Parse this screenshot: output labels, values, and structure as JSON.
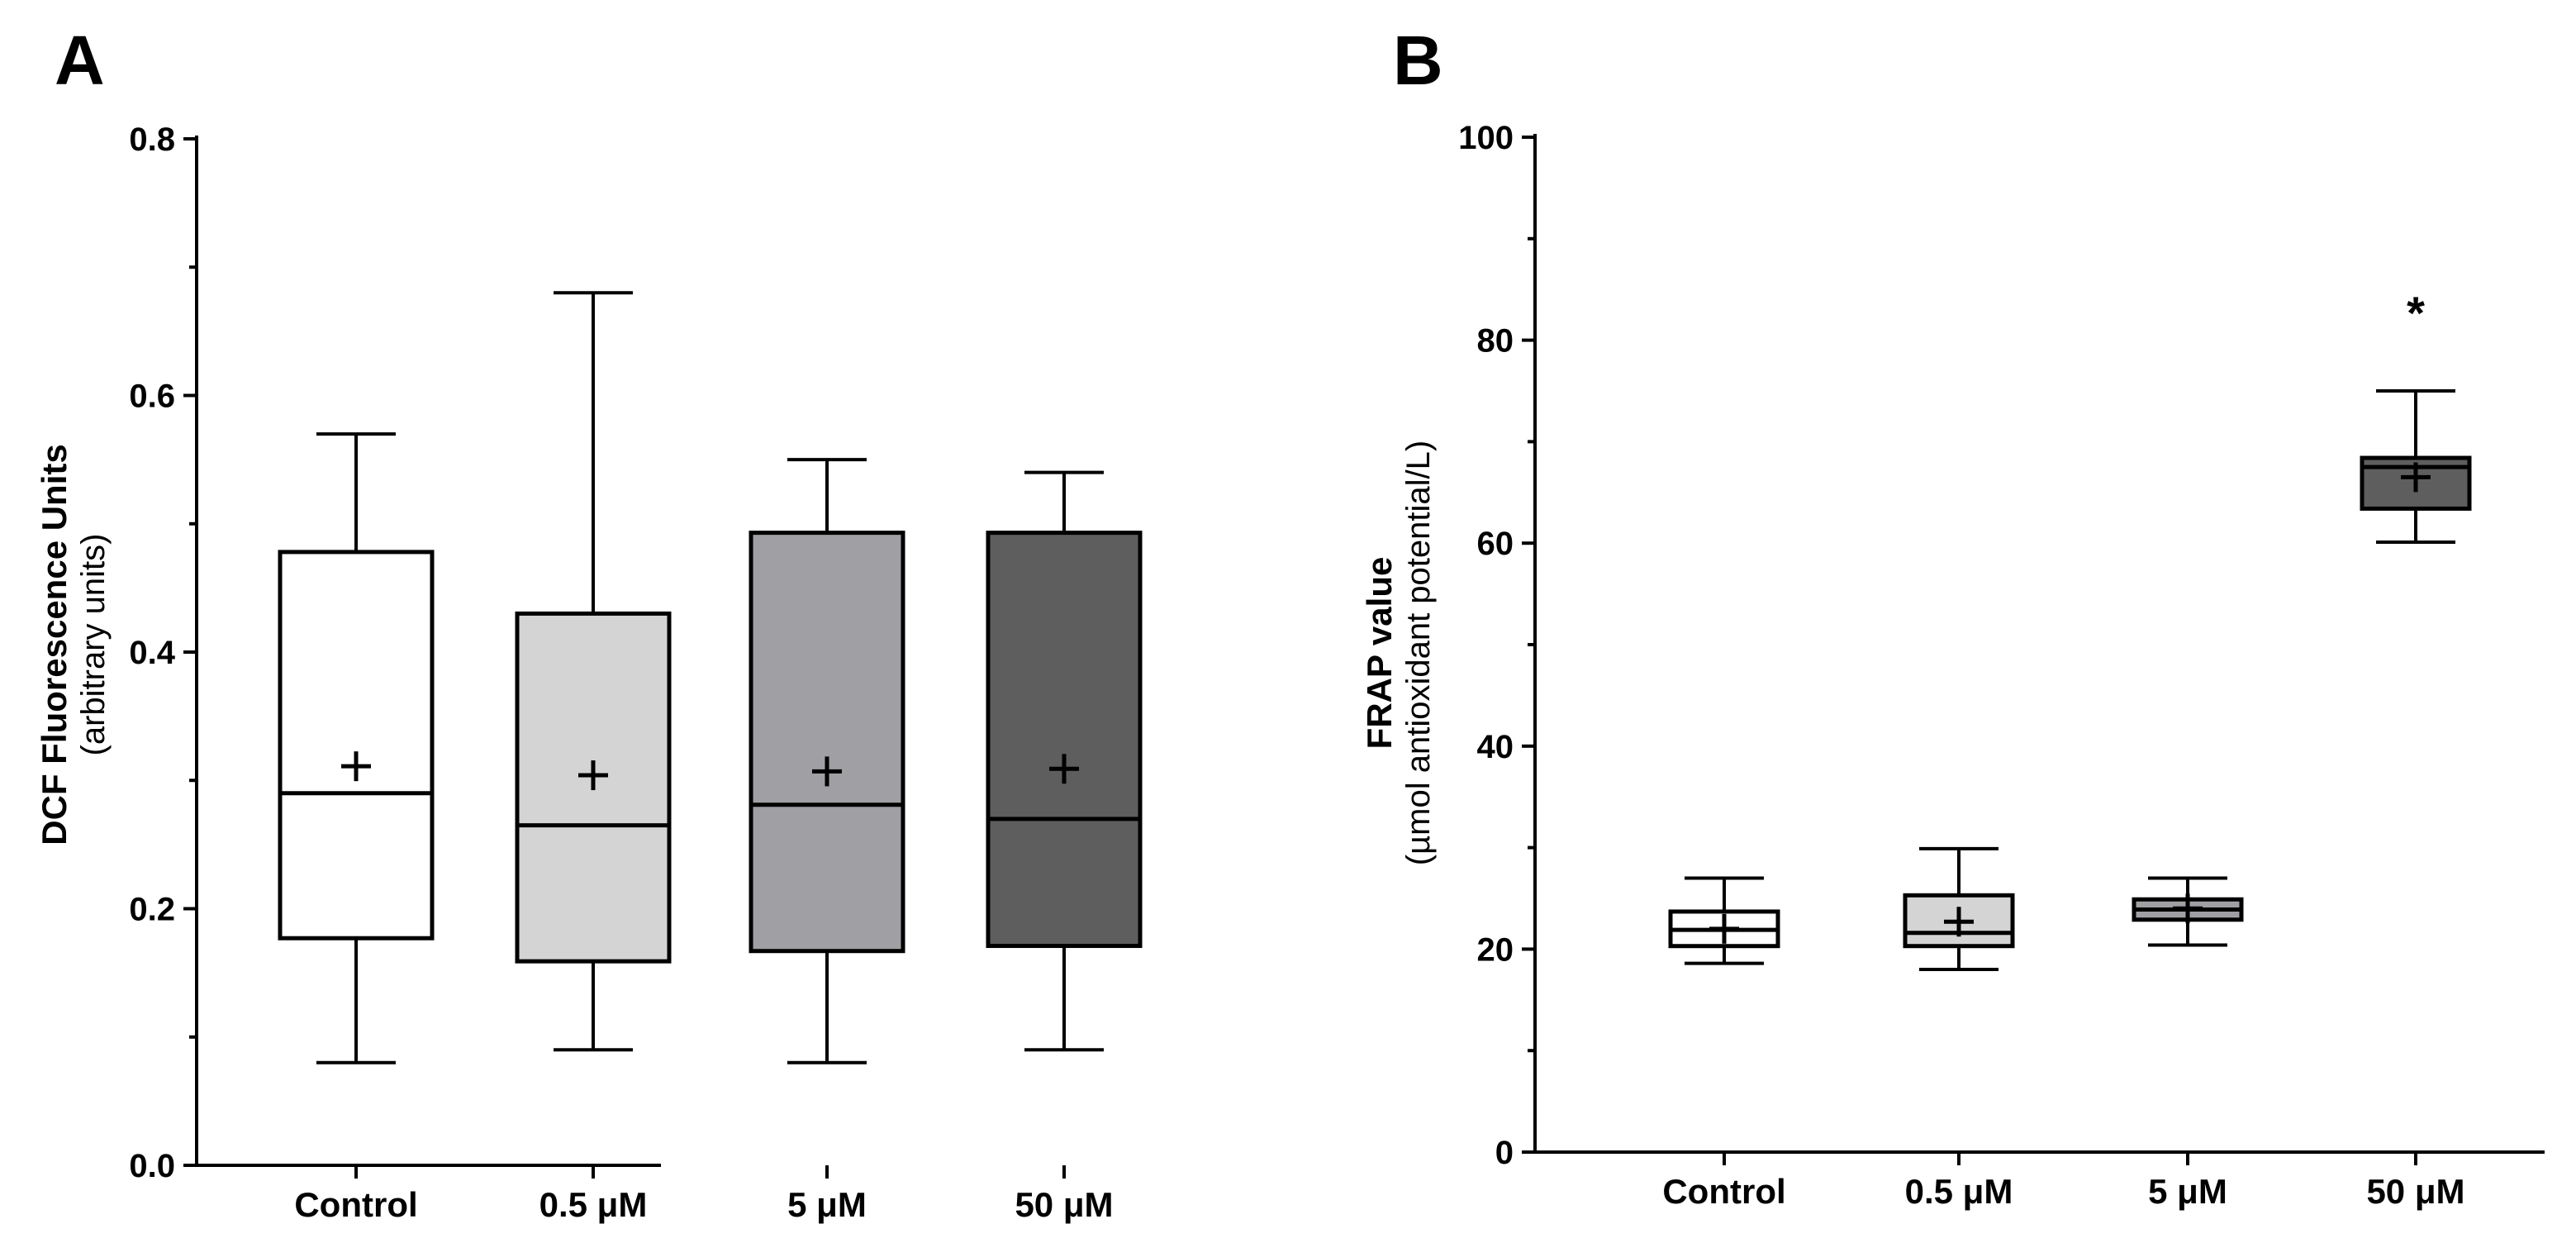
{
  "chart_data": [
    {
      "panel": "A",
      "type": "box",
      "ylabel": "DCF Fluorescence Units",
      "ylabel_sub": "(arbitrary units)",
      "xlabel": "",
      "ylim": [
        0,
        0.8
      ],
      "yticks": [
        "0.0",
        "0.2",
        "0.4",
        "0.6",
        "0.8"
      ],
      "ytick_values": [
        0,
        0.2,
        0.4,
        0.6,
        0.8
      ],
      "categories": [
        "Control",
        "0.5 μM",
        "5 μM",
        "50 μM"
      ],
      "boxes": [
        {
          "category": "Control",
          "min": 0.08,
          "q1": 0.177,
          "median": 0.29,
          "q3": 0.478,
          "max": 0.57,
          "mean": 0.311,
          "fill": "#ffffff"
        },
        {
          "category": "0.5 μM",
          "min": 0.09,
          "q1": 0.159,
          "median": 0.265,
          "q3": 0.43,
          "max": 0.68,
          "mean": 0.304,
          "fill": "#d4d4d4"
        },
        {
          "category": "5 μM",
          "min": 0.08,
          "q1": 0.167,
          "median": 0.281,
          "q3": 0.493,
          "max": 0.55,
          "mean": 0.307,
          "fill": "#a0a0a4"
        },
        {
          "category": "50 μM",
          "min": 0.09,
          "q1": 0.171,
          "median": 0.27,
          "q3": 0.493,
          "max": 0.54,
          "mean": 0.309,
          "fill": "#5e5e5e"
        }
      ],
      "annotations": []
    },
    {
      "panel": "B",
      "type": "box",
      "ylabel": "FRAP value",
      "ylabel_sub": "(µmol antioxidant potential/L)",
      "xlabel": "",
      "ylim": [
        0,
        100
      ],
      "yticks": [
        "0",
        "20",
        "40",
        "60",
        "80",
        "100"
      ],
      "ytick_values": [
        0,
        20,
        40,
        60,
        80,
        100
      ],
      "categories": [
        "Control",
        "0.5 μM",
        "5 μM",
        "50 μM"
      ],
      "boxes": [
        {
          "category": "Control",
          "min": 18.6,
          "q1": 20.3,
          "median": 21.9,
          "q3": 23.7,
          "max": 27.0,
          "mean": 22.0,
          "fill": "#ffffff"
        },
        {
          "category": "0.5 μM",
          "min": 18.0,
          "q1": 20.3,
          "median": 21.6,
          "q3": 25.3,
          "max": 29.9,
          "mean": 22.7,
          "fill": "#d4d4d4"
        },
        {
          "category": "5 μM",
          "min": 20.4,
          "q1": 22.9,
          "median": 23.9,
          "q3": 24.9,
          "max": 27.0,
          "mean": 24.0,
          "fill": "#a0a0a4"
        },
        {
          "category": "50 μM",
          "min": 60.1,
          "q1": 63.4,
          "median": 67.5,
          "q3": 68.4,
          "max": 75.0,
          "mean": 66.5,
          "fill": "#5e5e5e"
        }
      ],
      "annotations": [
        {
          "category": "50 μM",
          "text": "*"
        }
      ]
    }
  ]
}
